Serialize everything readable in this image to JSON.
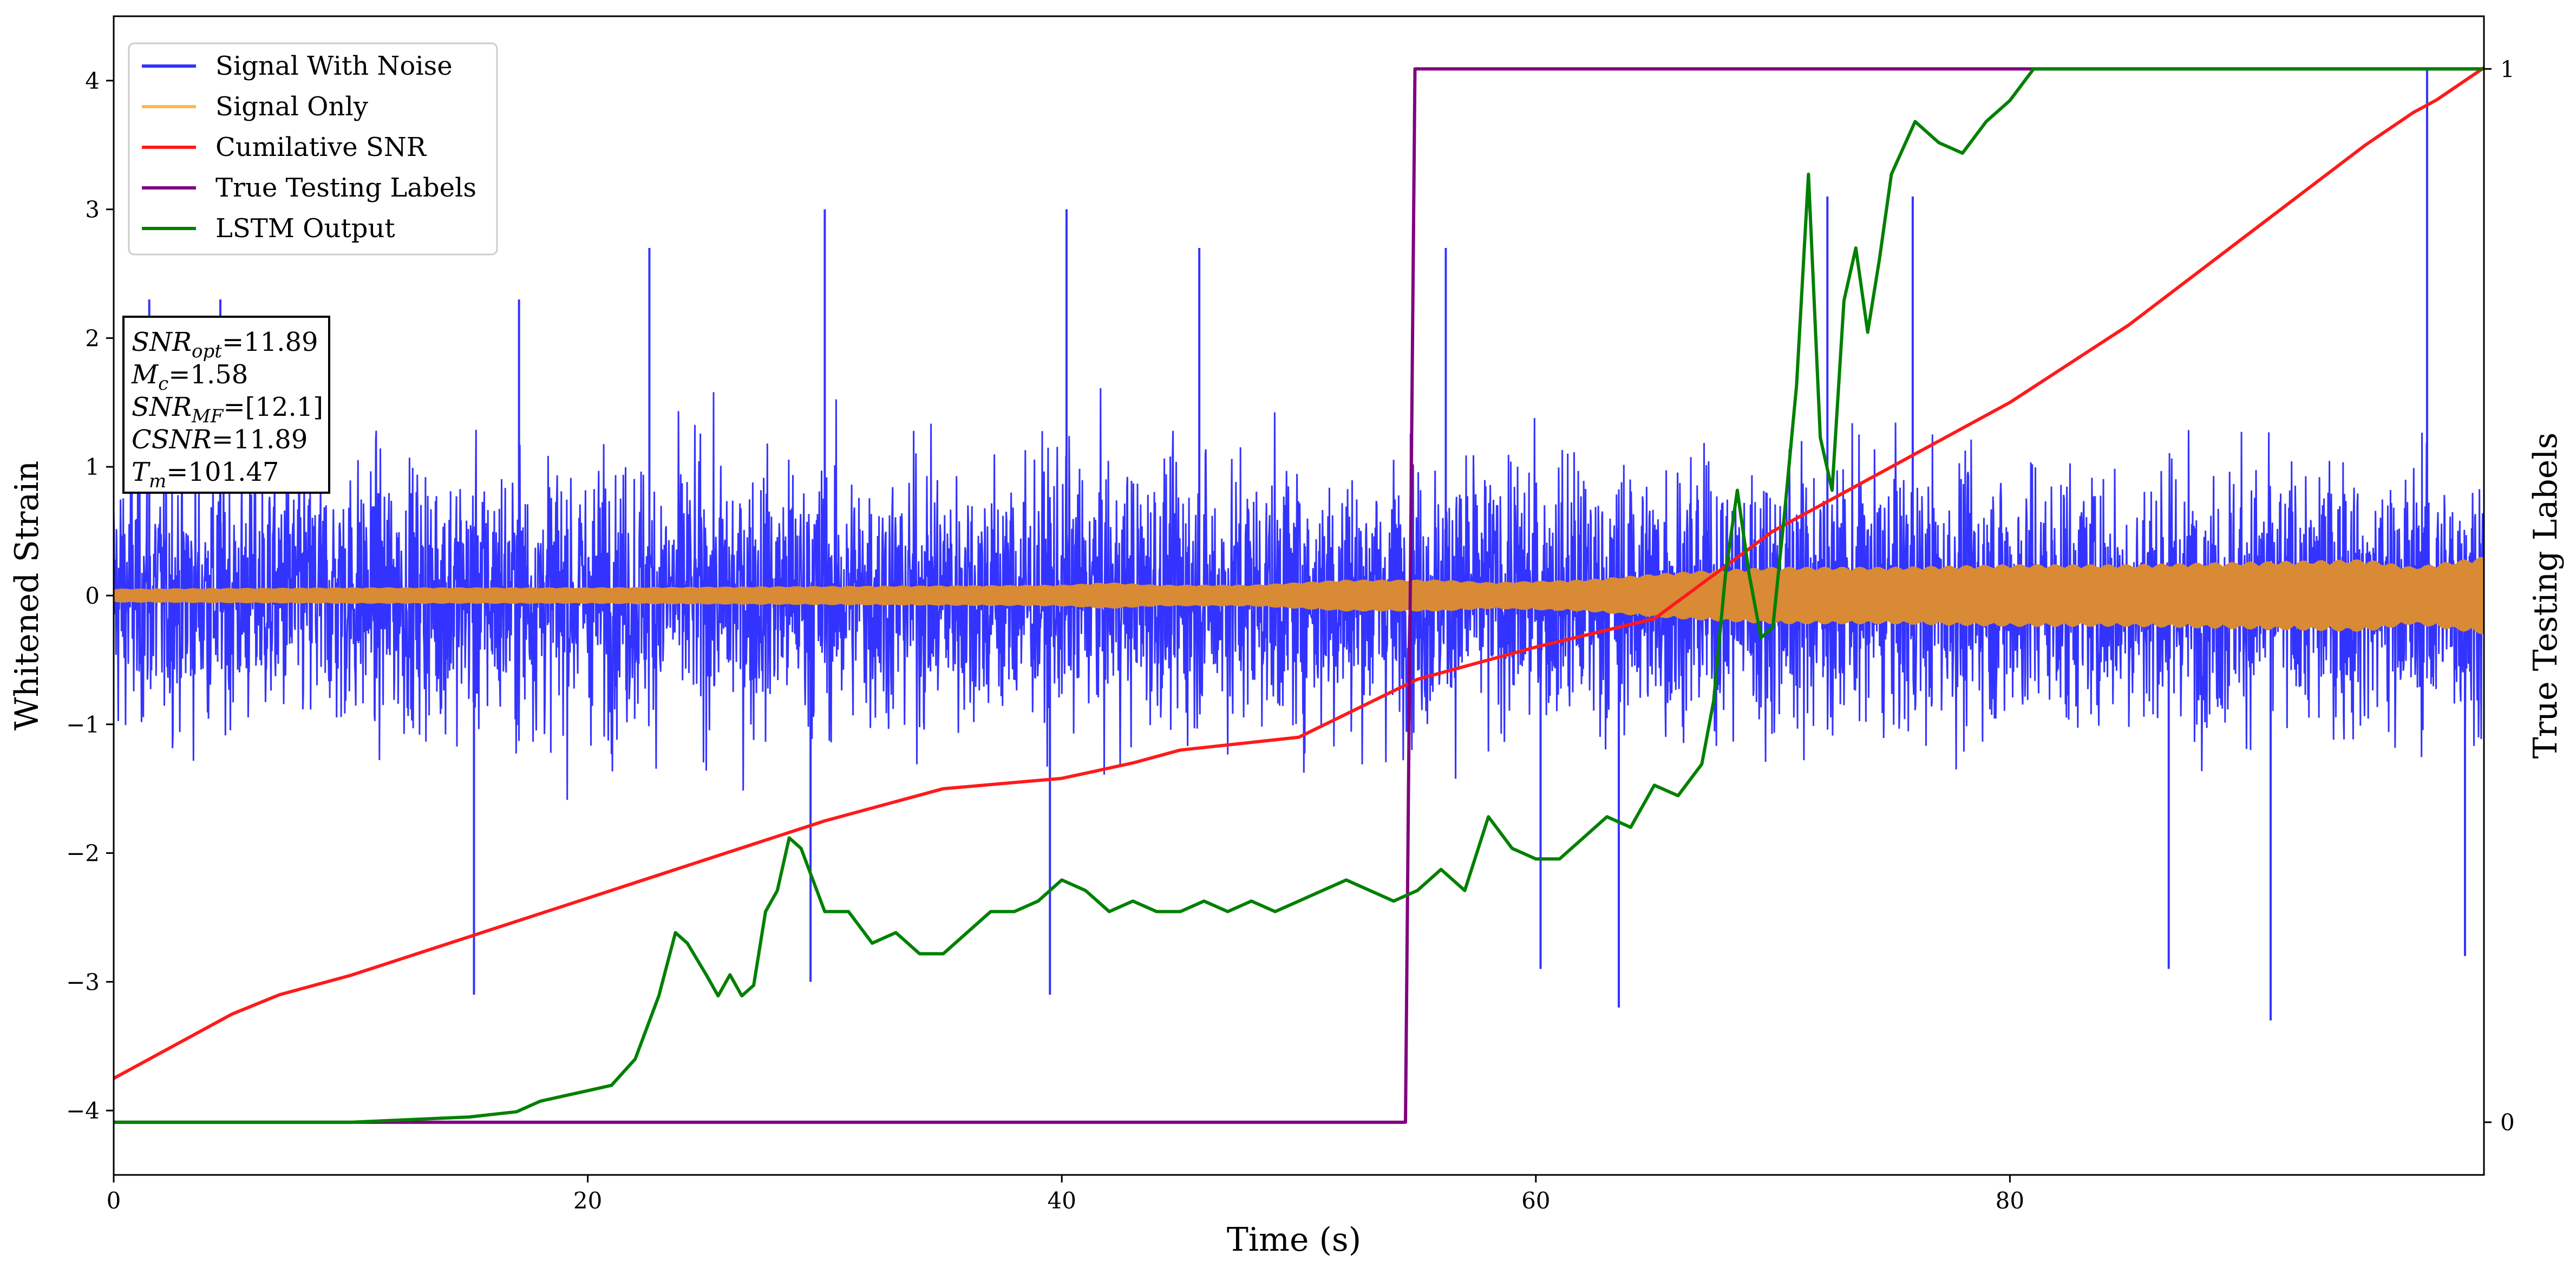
{
  "chart_data": {
    "type": "line",
    "x_label": "Time (s)",
    "y_label": "Whitened Strain",
    "y2_label": "True Testing Labels",
    "xlim": [
      0,
      100
    ],
    "ylim": [
      -4.5,
      4.5
    ],
    "y2lim": [
      -0.05,
      1.05
    ],
    "x_ticks": [
      0,
      20,
      40,
      60,
      80
    ],
    "y_ticks": [
      -4,
      -3,
      -2,
      -1,
      0,
      1,
      2,
      3,
      4
    ],
    "y_tick_labels": [
      "−4",
      "−3",
      "−2",
      "−1",
      "0",
      "1",
      "2",
      "3",
      "4"
    ],
    "y2_ticks": [
      0,
      1
    ],
    "legend": {
      "position": "upper-left",
      "entries": [
        {
          "label": "Signal With Noise",
          "color": "#3333ff"
        },
        {
          "label": "Signal Only",
          "color": "#ffb84d"
        },
        {
          "label": "Cumilative SNR",
          "color": "#ff1a1a"
        },
        {
          "label": "True Testing Labels",
          "color": "#800080"
        },
        {
          "label": "LSTM Output",
          "color": "#008000"
        }
      ]
    },
    "annotation": {
      "lines": [
        {
          "base": "SNR",
          "sub": "opt",
          "value": "=11.89"
        },
        {
          "base": "M",
          "sub": "c",
          "value": "=1.58"
        },
        {
          "base": "SNR",
          "sub": "MF",
          "value": "=[12.1]"
        },
        {
          "base": "CSNR",
          "sub": "",
          "value": "=11.89"
        },
        {
          "base": "T",
          "sub": "m",
          "value": "=101.47"
        }
      ]
    },
    "series": [
      {
        "name": "Signal With Noise",
        "axis": "left",
        "color": "#3333ff",
        "style": "noise-band",
        "envelope": {
          "x": [
            0,
            10,
            20,
            30,
            40,
            50,
            55,
            60,
            70,
            80,
            90,
            100
          ],
          "upper": [
            2.1,
            2.2,
            2.6,
            3.0,
            3.0,
            2.7,
            2.6,
            2.9,
            3.2,
            3.0,
            3.1,
            3.0
          ],
          "lower": [
            -2.3,
            -2.6,
            -2.7,
            -2.7,
            -3.1,
            -2.8,
            -2.9,
            -3.2,
            -2.9,
            -3.1,
            -3.3,
            -2.8
          ]
        },
        "peaks": [
          {
            "x": 1.5,
            "y": 2.3
          },
          {
            "x": 4.5,
            "y": 2.3
          },
          {
            "x": 15.2,
            "y": -3.1
          },
          {
            "x": 17.1,
            "y": 2.3
          },
          {
            "x": 22.6,
            "y": 2.7
          },
          {
            "x": 29.4,
            "y": -3.0
          },
          {
            "x": 30.0,
            "y": 3.0
          },
          {
            "x": 40.2,
            "y": 3.0
          },
          {
            "x": 39.5,
            "y": -3.1
          },
          {
            "x": 45.8,
            "y": 2.7
          },
          {
            "x": 56.2,
            "y": 2.7
          },
          {
            "x": 60.2,
            "y": -2.9
          },
          {
            "x": 63.5,
            "y": -3.2
          },
          {
            "x": 72.3,
            "y": 3.1
          },
          {
            "x": 75.9,
            "y": 3.1
          },
          {
            "x": 86.7,
            "y": -2.9
          },
          {
            "x": 91.0,
            "y": -3.3
          },
          {
            "x": 97.6,
            "y": 4.1
          },
          {
            "x": 99.2,
            "y": -2.8
          }
        ]
      },
      {
        "name": "Signal Only",
        "axis": "left",
        "color": "#d88a35",
        "style": "band",
        "x": [
          0,
          10,
          20,
          30,
          40,
          42,
          44,
          48,
          50,
          52,
          56,
          58,
          62,
          66,
          70,
          75,
          80,
          85,
          90,
          95,
          97,
          100
        ],
        "amplitude": [
          0.05,
          0.06,
          0.06,
          0.07,
          0.08,
          0.1,
          0.08,
          0.08,
          0.1,
          0.12,
          0.12,
          0.1,
          0.12,
          0.18,
          0.22,
          0.22,
          0.24,
          0.24,
          0.26,
          0.28,
          0.22,
          0.3
        ]
      },
      {
        "name": "Cumilative SNR",
        "axis": "left",
        "color": "#ff1a1a",
        "x": [
          0,
          2,
          5,
          7,
          10,
          15,
          20,
          25,
          30,
          35,
          40,
          43,
          45,
          50,
          55,
          60,
          65,
          70,
          75,
          80,
          85,
          90,
          95,
          97,
          98,
          100
        ],
        "y": [
          -3.75,
          -3.55,
          -3.25,
          -3.1,
          -2.95,
          -2.65,
          -2.35,
          -2.05,
          -1.75,
          -1.5,
          -1.42,
          -1.3,
          -1.2,
          -1.1,
          -0.65,
          -0.4,
          -0.18,
          0.5,
          1.0,
          1.5,
          2.1,
          2.8,
          3.5,
          3.75,
          3.85,
          4.1
        ]
      },
      {
        "name": "True Testing Labels",
        "axis": "right",
        "color": "#800080",
        "x": [
          0,
          54.5,
          54.9,
          100
        ],
        "y": [
          0,
          0,
          1,
          1
        ]
      },
      {
        "name": "LSTM Output",
        "axis": "right",
        "color": "#008000",
        "x": [
          0,
          10,
          15,
          17,
          18,
          19,
          20,
          21,
          22,
          23,
          23.7,
          24.2,
          25,
          25.5,
          26,
          26.5,
          27,
          27.5,
          28,
          28.5,
          29,
          30,
          31,
          32,
          33,
          34,
          35,
          36,
          37,
          38,
          39,
          40,
          41,
          42,
          43,
          44,
          45,
          46,
          47,
          48,
          49,
          50,
          51,
          52,
          53,
          54,
          55,
          56,
          57,
          58,
          59,
          60,
          61,
          62,
          63,
          64,
          65,
          66,
          67,
          67.5,
          68,
          68.5,
          69,
          69.5,
          70,
          70.5,
          71,
          71.5,
          72,
          72.5,
          73,
          73.5,
          74,
          74.5,
          75,
          76,
          77,
          78,
          79,
          80,
          81,
          82,
          83,
          100
        ],
        "y": [
          0,
          0,
          0.005,
          0.01,
          0.02,
          0.025,
          0.03,
          0.035,
          0.06,
          0.12,
          0.18,
          0.17,
          0.14,
          0.12,
          0.14,
          0.12,
          0.13,
          0.2,
          0.22,
          0.27,
          0.26,
          0.2,
          0.2,
          0.17,
          0.18,
          0.16,
          0.16,
          0.18,
          0.2,
          0.2,
          0.21,
          0.23,
          0.22,
          0.2,
          0.21,
          0.2,
          0.2,
          0.21,
          0.2,
          0.21,
          0.2,
          0.21,
          0.22,
          0.23,
          0.22,
          0.21,
          0.22,
          0.24,
          0.22,
          0.29,
          0.26,
          0.25,
          0.25,
          0.27,
          0.29,
          0.28,
          0.32,
          0.31,
          0.34,
          0.4,
          0.52,
          0.6,
          0.52,
          0.46,
          0.47,
          0.58,
          0.7,
          0.9,
          0.65,
          0.6,
          0.78,
          0.83,
          0.75,
          0.82,
          0.9,
          0.95,
          0.93,
          0.92,
          0.95,
          0.97,
          1.0,
          1.0,
          1.0,
          1.0
        ]
      }
    ]
  }
}
